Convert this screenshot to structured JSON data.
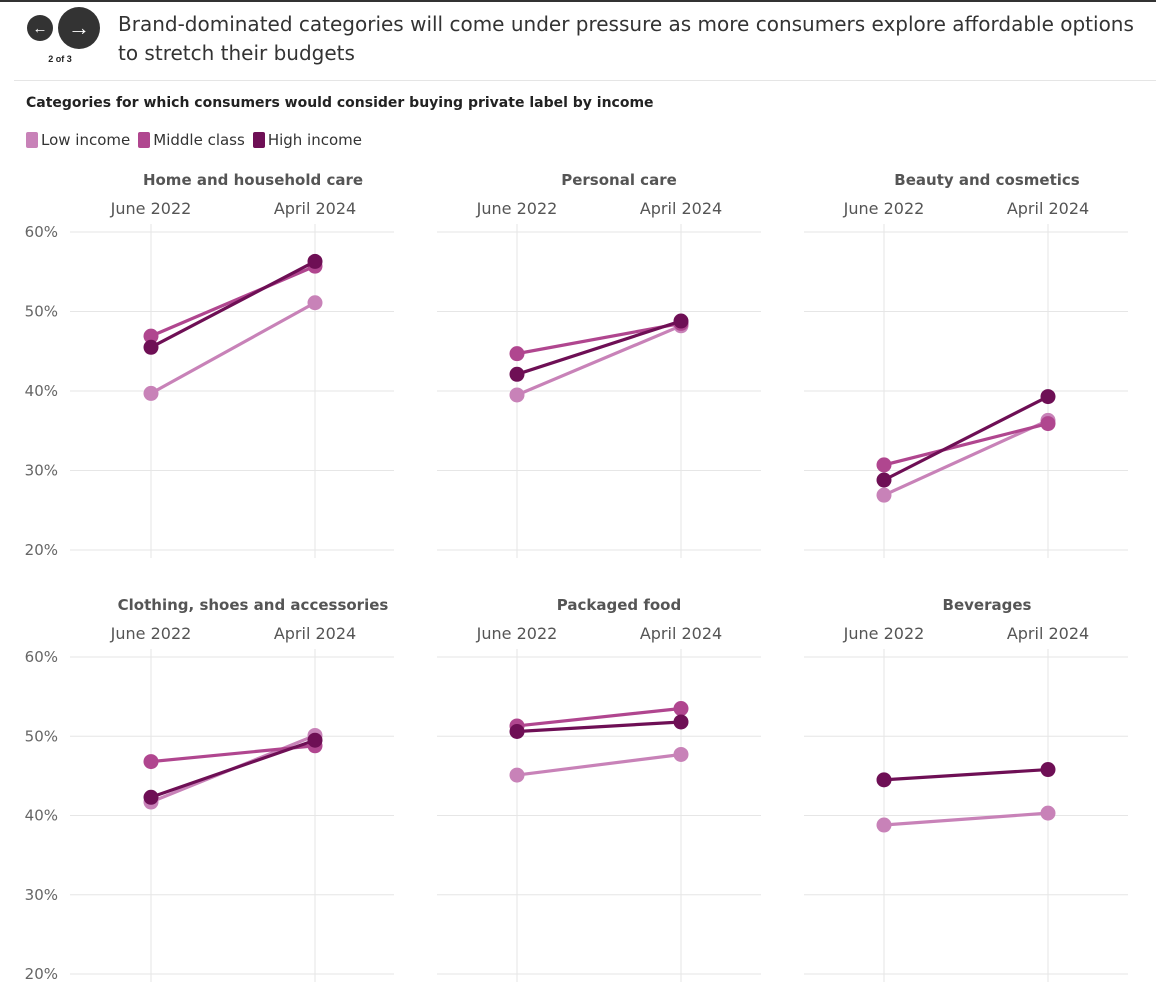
{
  "nav": {
    "prev_label": "←",
    "next_label": "→",
    "pager": "2 of 3"
  },
  "headline": "Brand-dominated categories will come under pressure as more consumers explore affordable options to stretch their budgets",
  "chart_data": {
    "type": "line",
    "subtitle": "Categories for which consumers would consider buying private label by income",
    "x": [
      "June 2022",
      "April 2024"
    ],
    "y_ticks": [
      "60%",
      "50%",
      "40%",
      "30%",
      "20%"
    ],
    "ylim": [
      20,
      60
    ],
    "grid": true,
    "legend_position": "top-left",
    "legend": [
      {
        "name": "Low income",
        "color": "#c882b8"
      },
      {
        "name": "Middle class",
        "color": "#b0468f"
      },
      {
        "name": "High income",
        "color": "#6e0f55"
      }
    ],
    "panels": [
      {
        "title": "Home and household care",
        "series": [
          {
            "name": "Low income",
            "values": [
              39.7,
              51.1
            ]
          },
          {
            "name": "Middle class",
            "values": [
              46.9,
              55.7
            ]
          },
          {
            "name": "High income",
            "values": [
              45.5,
              56.3
            ]
          }
        ]
      },
      {
        "title": "Personal care",
        "series": [
          {
            "name": "Low income",
            "values": [
              39.5,
              48.2
            ]
          },
          {
            "name": "Middle class",
            "values": [
              44.7,
              48.5
            ]
          },
          {
            "name": "High income",
            "values": [
              42.1,
              48.8
            ]
          }
        ]
      },
      {
        "title": "Beauty and cosmetics",
        "series": [
          {
            "name": "Low income",
            "values": [
              26.9,
              36.3
            ]
          },
          {
            "name": "Middle class",
            "values": [
              30.7,
              35.9
            ]
          },
          {
            "name": "High income",
            "values": [
              28.8,
              39.3
            ]
          }
        ]
      },
      {
        "title": "Clothing, shoes and accessories",
        "series": [
          {
            "name": "Low income",
            "values": [
              41.7,
              50.1
            ]
          },
          {
            "name": "Middle class",
            "values": [
              46.8,
              48.8
            ]
          },
          {
            "name": "High income",
            "values": [
              42.3,
              49.5
            ]
          }
        ]
      },
      {
        "title": "Packaged food",
        "series": [
          {
            "name": "Low income",
            "values": [
              45.1,
              47.7
            ]
          },
          {
            "name": "Middle class",
            "values": [
              51.3,
              53.5
            ]
          },
          {
            "name": "High income",
            "values": [
              50.6,
              51.8
            ]
          }
        ]
      },
      {
        "title": "Beverages",
        "series": [
          {
            "name": "Low income",
            "values": [
              38.8,
              40.3
            ]
          },
          {
            "name": "High income",
            "values": [
              44.5,
              45.8
            ]
          }
        ]
      }
    ]
  }
}
